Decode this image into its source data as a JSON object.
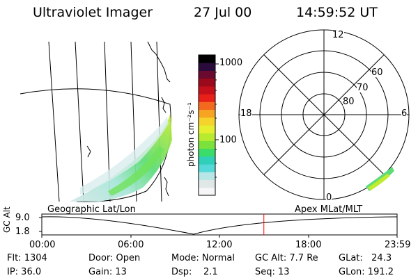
{
  "header": {
    "instrument": "Ultraviolet Imager",
    "date": "27 Jul 00",
    "time": "14:59:52 UT"
  },
  "colorbar": {
    "unit_label": "photon cm⁻²s⁻¹",
    "ticks": [
      "1000",
      "100"
    ],
    "scale": "log",
    "colors": [
      "#f6f6f6",
      "#dfe7e7",
      "#b8e6e6",
      "#55d8d8",
      "#2fcfb8",
      "#3adc6a",
      "#7ae23a",
      "#b8ea30",
      "#e6ef2f",
      "#f6d22c",
      "#f7a423",
      "#f36a1f",
      "#e82018",
      "#c3101a",
      "#9a0a1a",
      "#6a0a2e",
      "#2a0c3c",
      "#000000"
    ]
  },
  "polar": {
    "labels": [
      "12",
      "18",
      "6",
      "0",
      "80",
      "70",
      "60"
    ],
    "lat_rings": [
      80,
      70,
      60
    ]
  },
  "geo_title": "Geographic Lat/Lon",
  "apex_title": "Apex MLat/MLT",
  "orbit": {
    "axis_label": "GC Alt",
    "y_ticks": [
      "9.0",
      "1.8"
    ],
    "x_ticks": [
      "00:00",
      "06:00",
      "12:00",
      "18:00",
      "23:59"
    ],
    "marker_hour": 15.0,
    "marker_color": "#ff0000"
  },
  "info": {
    "flt": "Flt: 1304",
    "ip": "IP: 36.0",
    "door": "Door: Open",
    "gain": "Gain: 13",
    "mode": "Mode: Normal",
    "dsp": "Dsp:    2.1",
    "gcalt": "GC Alt: 7.7 Re",
    "seq": "Seq: 13",
    "glat": "GLat:   24.3",
    "glon": "GLon: 191.2"
  }
}
